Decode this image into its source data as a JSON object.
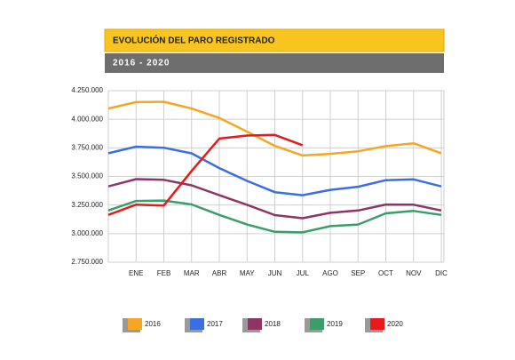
{
  "chart_data": {
    "type": "line",
    "title": "EVOLUCIÓN DEL PARO REGISTRADO",
    "subtitle": "2016 - 2020",
    "categories": [
      null,
      "ENE",
      "FEB",
      "MAR",
      "ABR",
      "MAY",
      "JUN",
      "JUL",
      "AGO",
      "SEP",
      "OCT",
      "NOV",
      "DIC"
    ],
    "series": [
      {
        "name": "2016",
        "color": "#f5a623",
        "values": [
          4093508,
          4150000,
          4152986,
          4094042,
          4011024,
          3891403,
          3767054,
          3683061,
          3697496,
          3720297,
          3764982,
          3789823,
          3702974
        ]
      },
      {
        "name": "2017",
        "color": "#3b6fe0",
        "values": [
          3702974,
          3760231,
          3750876,
          3702317,
          3573036,
          3461128,
          3362811,
          3335924,
          3382324,
          3410182,
          3467026,
          3474281,
          3412781
        ]
      },
      {
        "name": "2018",
        "color": "#8e3566",
        "values": [
          3412781,
          3476528,
          3470248,
          3422551,
          3335868,
          3252130,
          3162162,
          3135021,
          3182068,
          3202509,
          3254703,
          3252867,
          3202297
        ]
      },
      {
        "name": "2019",
        "color": "#3a9e6a",
        "values": [
          3202297,
          3285761,
          3289040,
          3255084,
          3163566,
          3079491,
          3015686,
          3011433,
          3065804,
          3079711,
          3177659,
          3198184,
          3163605
        ]
      },
      {
        "name": "2020",
        "color": "#e8191a",
        "values": [
          3163605,
          3253853,
          3246047,
          3548312,
          3831203,
          3857776,
          3862883,
          3773034,
          null,
          null,
          null,
          null,
          null
        ]
      }
    ],
    "ylim": [
      2750000,
      4250000
    ],
    "yticks": [
      {
        "value": 2750000,
        "label": "2.750.000"
      },
      {
        "value": 3000000,
        "label": "3.000.000"
      },
      {
        "value": 3250000,
        "label": "3.250.000"
      },
      {
        "value": 3500000,
        "label": "3.500.000"
      },
      {
        "value": 3750000,
        "label": "3.750.000"
      },
      {
        "value": 4000000,
        "label": "4.000.000"
      },
      {
        "value": 4250000,
        "label": "4.250.000"
      }
    ],
    "grid": true,
    "legend": "bottom"
  }
}
